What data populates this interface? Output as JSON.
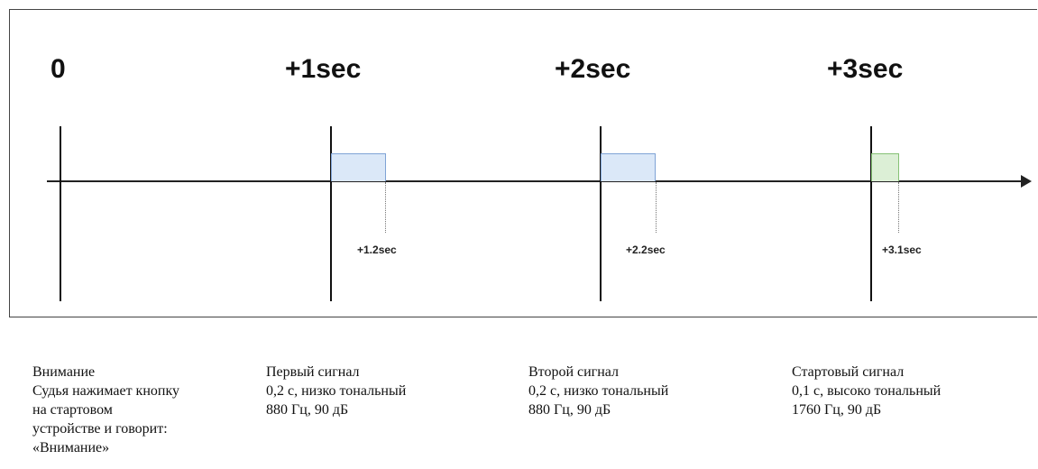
{
  "timeline": {
    "ticks": [
      {
        "label": "0"
      },
      {
        "label": "+1sec"
      },
      {
        "label": "+2sec"
      },
      {
        "label": "+3sec"
      }
    ],
    "pulses": [
      {
        "start": 1.0,
        "end": 1.2,
        "tone": "low",
        "end_label": "+1.2sec"
      },
      {
        "start": 2.0,
        "end": 2.2,
        "tone": "low",
        "end_label": "+2.2sec"
      },
      {
        "start": 3.0,
        "end": 3.1,
        "tone": "high",
        "end_label": "+3.1sec"
      }
    ],
    "colors": {
      "low_fill": "#dbe8f8",
      "low_stroke": "#7fa3d6",
      "high_fill": "#dcefd6",
      "high_stroke": "#86c175"
    }
  },
  "descriptions": [
    {
      "lines": [
        "Внимание",
        "Судья нажимает кнопку",
        "на стартовом",
        "устройстве и говорит:",
        "«Внимание»"
      ]
    },
    {
      "lines": [
        "Первый сигнал",
        "0,2 с, низко тональный",
        "880 Гц, 90 дБ"
      ]
    },
    {
      "lines": [
        "Второй сигнал",
        "0,2 с, низко тональный",
        "880 Гц, 90 дБ"
      ]
    },
    {
      "lines": [
        "Стартовый сигнал",
        "0,1 с, высоко тональный",
        "1760 Гц, 90 дБ"
      ]
    }
  ]
}
